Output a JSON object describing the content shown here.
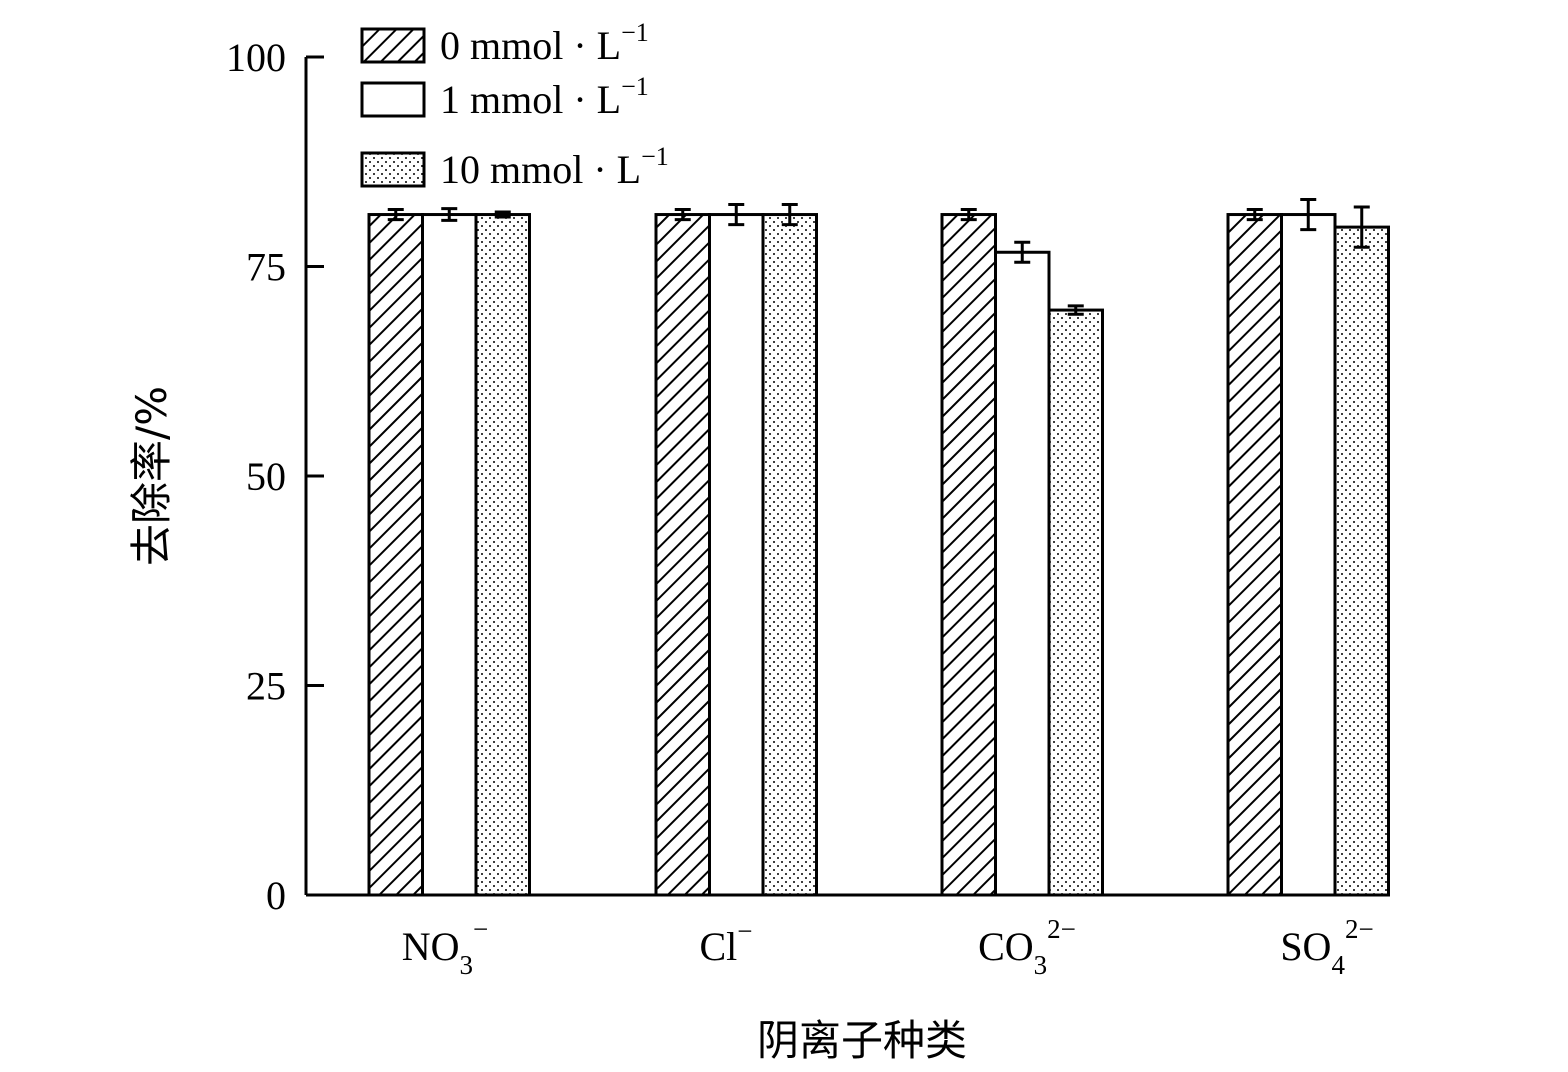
{
  "chart_data": {
    "type": "bar",
    "categories": [
      "NO3−",
      "Cl−",
      "CO32−",
      "SO42−"
    ],
    "category_labels": [
      {
        "base": "NO",
        "sub": "3",
        "sup": "−"
      },
      {
        "base": "Cl",
        "sub": "",
        "sup": "−"
      },
      {
        "base": "CO",
        "sub": "3",
        "sup": "2−"
      },
      {
        "base": "SO",
        "sub": "4",
        "sup": "2−"
      }
    ],
    "series": [
      {
        "name": "0 mmol · L−1",
        "legend": {
          "text": "0 mmol · L",
          "sup": "−1"
        },
        "pattern": "hatch",
        "values": [
          81.2,
          81.2,
          81.2,
          81.2
        ],
        "errors": [
          0.6,
          0.6,
          0.6,
          0.6
        ]
      },
      {
        "name": "1 mmol · L−1",
        "legend": {
          "text": "1 mmol · L",
          "sup": "−1"
        },
        "pattern": "none",
        "values": [
          81.2,
          81.2,
          76.7,
          81.2
        ],
        "errors": [
          0.7,
          1.2,
          1.2,
          1.8
        ]
      },
      {
        "name": "10 mmol · L−1",
        "legend": {
          "text": "10 mmol · L",
          "sup": "−1"
        },
        "pattern": "dots",
        "values": [
          81.2,
          81.2,
          69.8,
          79.7
        ],
        "errors": [
          0.3,
          1.2,
          0.5,
          2.4
        ]
      }
    ],
    "xlabel": "阴离子种类",
    "ylabel": "去除率/%",
    "ylim": [
      0,
      100
    ],
    "yticks": [
      0,
      25,
      50,
      75,
      100
    ],
    "legend_position": "top-left",
    "grid": false
  }
}
